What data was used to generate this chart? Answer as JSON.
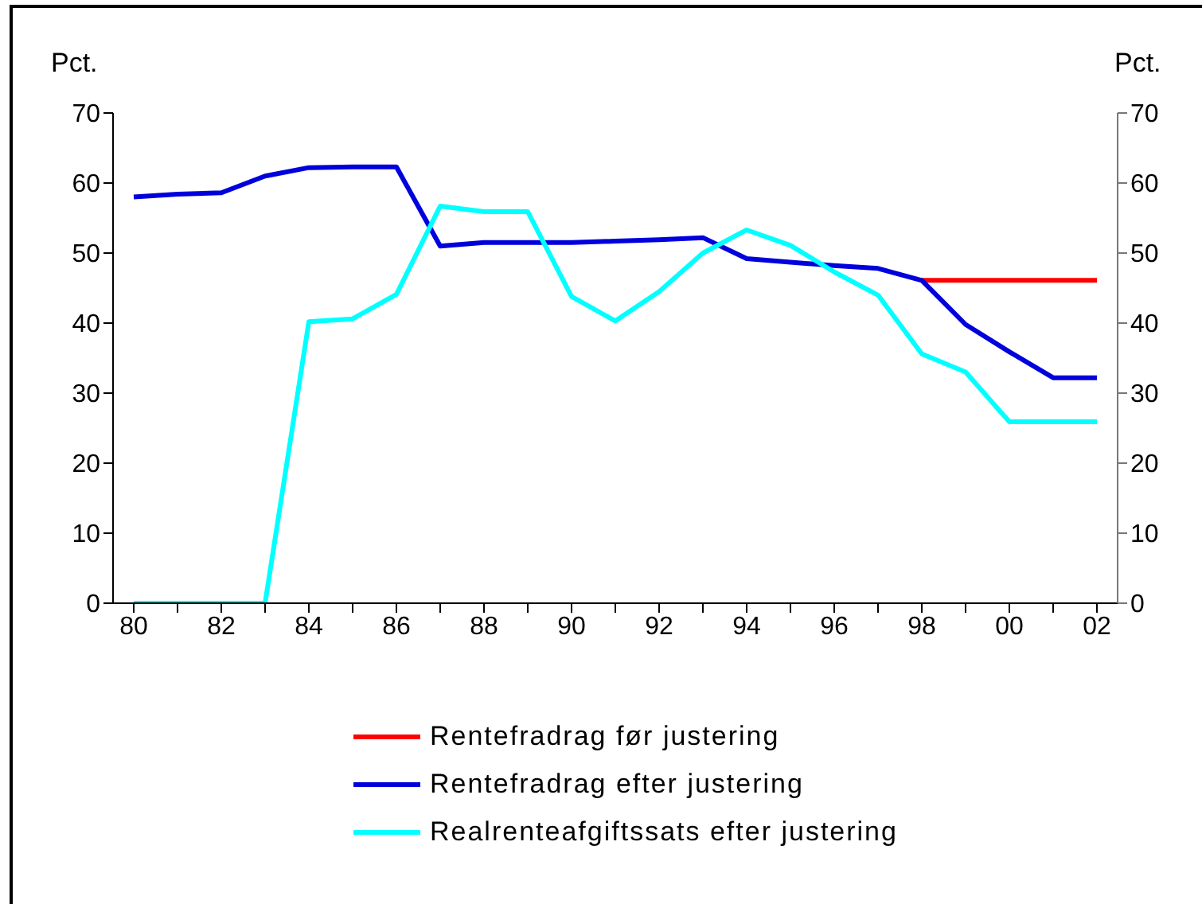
{
  "chart_data": {
    "type": "line",
    "ylabel": "Pct.",
    "y2label": "Pct.",
    "categories": [
      "80",
      null,
      "82",
      null,
      "84",
      null,
      "86",
      null,
      "88",
      null,
      "90",
      null,
      "92",
      null,
      "94",
      null,
      "96",
      null,
      "98",
      null,
      "00",
      null,
      "02"
    ],
    "series": [
      {
        "name": "Rentefradrag før justering",
        "color": "#ff0000",
        "values": [
          null,
          null,
          null,
          null,
          null,
          null,
          null,
          null,
          null,
          null,
          null,
          null,
          null,
          null,
          null,
          null,
          null,
          null,
          46.1,
          46.1,
          46.1,
          46.1,
          46.1
        ]
      },
      {
        "name": "Rentefradrag efter justering",
        "color": "#0000dd",
        "values": [
          58.0,
          58.4,
          58.6,
          61.0,
          62.2,
          62.3,
          62.3,
          51.0,
          51.5,
          51.5,
          51.5,
          51.7,
          51.9,
          52.2,
          49.2,
          48.7,
          48.2,
          47.8,
          46.1,
          39.8,
          35.9,
          32.2,
          32.2
        ]
      },
      {
        "name": "Realrenteafgiftssats efter justering",
        "color": "#00ffff",
        "values": [
          0,
          0,
          0,
          0,
          40.2,
          40.6,
          44.1,
          56.7,
          55.9,
          55.9,
          43.8,
          40.3,
          44.5,
          50.0,
          53.3,
          51.1,
          47.3,
          44.0,
          35.6,
          33.0,
          25.9,
          25.9,
          25.9
        ]
      }
    ],
    "ylim": [
      0,
      70
    ],
    "yticks": [
      0,
      10,
      20,
      30,
      40,
      50,
      60,
      70
    ],
    "y2lim": [
      0,
      70
    ],
    "y2ticks": [
      0,
      10,
      20,
      30,
      40,
      50,
      60,
      70
    ],
    "grid": false,
    "legend": "bottom",
    "marker": "none",
    "line_style": "solid"
  }
}
